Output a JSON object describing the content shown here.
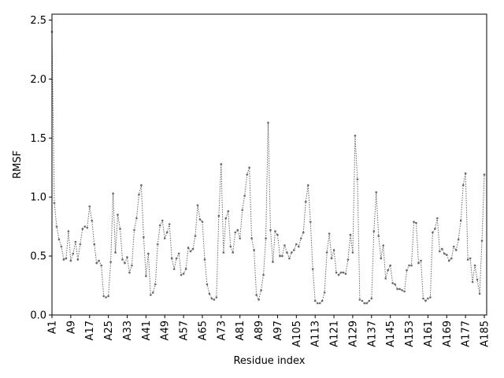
{
  "chart_data": {
    "type": "line",
    "title": "",
    "xlabel": "Residue index",
    "ylabel": "RMSF",
    "ylim": [
      0,
      2.55
    ],
    "xlim": [
      1,
      186
    ],
    "grid": false,
    "x_tick_labels": [
      "A1",
      "A9",
      "A17",
      "A25",
      "A33",
      "A41",
      "A49",
      "A57",
      "A65",
      "A73",
      "A81",
      "A89",
      "A97",
      "A105",
      "A113",
      "A121",
      "A129",
      "A137",
      "A145",
      "A153",
      "A161",
      "A169",
      "A177",
      "A185"
    ],
    "y_ticks": [
      "0.0",
      "0.5",
      "1.0",
      "1.5",
      "2.0",
      "2.5"
    ],
    "series": [
      {
        "name": "",
        "color": "#696969",
        "style": "dotted-with-markers",
        "values": [
          2.4,
          0.95,
          0.75,
          0.64,
          0.58,
          0.47,
          0.48,
          0.71,
          0.46,
          0.52,
          0.62,
          0.47,
          0.6,
          0.73,
          0.75,
          0.74,
          0.92,
          0.8,
          0.6,
          0.44,
          0.46,
          0.42,
          0.16,
          0.15,
          0.16,
          0.45,
          1.03,
          0.53,
          0.85,
          0.73,
          0.47,
          0.44,
          0.49,
          0.36,
          0.42,
          0.72,
          0.82,
          1.02,
          1.1,
          0.66,
          0.33,
          0.52,
          0.17,
          0.19,
          0.26,
          0.6,
          0.76,
          0.8,
          0.65,
          0.7,
          0.77,
          0.48,
          0.39,
          0.48,
          0.52,
          0.34,
          0.35,
          0.39,
          0.57,
          0.54,
          0.56,
          0.67,
          0.93,
          0.81,
          0.79,
          0.47,
          0.26,
          0.18,
          0.14,
          0.13,
          0.15,
          0.84,
          1.28,
          0.53,
          0.82,
          0.88,
          0.58,
          0.53,
          0.7,
          0.72,
          0.65,
          0.89,
          1.01,
          1.19,
          1.25,
          0.65,
          0.55,
          0.17,
          0.13,
          0.21,
          0.34,
          0.65,
          1.63,
          0.72,
          0.45,
          0.71,
          0.68,
          0.5,
          0.5,
          0.59,
          0.53,
          0.48,
          0.53,
          0.55,
          0.6,
          0.58,
          0.65,
          0.7,
          0.96,
          1.1,
          0.79,
          0.39,
          0.12,
          0.1,
          0.1,
          0.12,
          0.19,
          0.53,
          0.69,
          0.48,
          0.55,
          0.36,
          0.34,
          0.36,
          0.36,
          0.35,
          0.47,
          0.68,
          0.53,
          1.52,
          1.15,
          0.13,
          0.12,
          0.1,
          0.1,
          0.12,
          0.14,
          0.71,
          1.04,
          0.67,
          0.48,
          0.59,
          0.31,
          0.38,
          0.42,
          0.27,
          0.26,
          0.22,
          0.22,
          0.21,
          0.2,
          0.38,
          0.42,
          0.42,
          0.79,
          0.78,
          0.44,
          0.46,
          0.14,
          0.12,
          0.14,
          0.15,
          0.7,
          0.73,
          0.82,
          0.54,
          0.56,
          0.52,
          0.51,
          0.46,
          0.48,
          0.58,
          0.55,
          0.64,
          0.8,
          1.1,
          1.2,
          0.47,
          0.48,
          0.28,
          0.42,
          0.3,
          0.18,
          0.63,
          1.19
        ]
      }
    ]
  }
}
